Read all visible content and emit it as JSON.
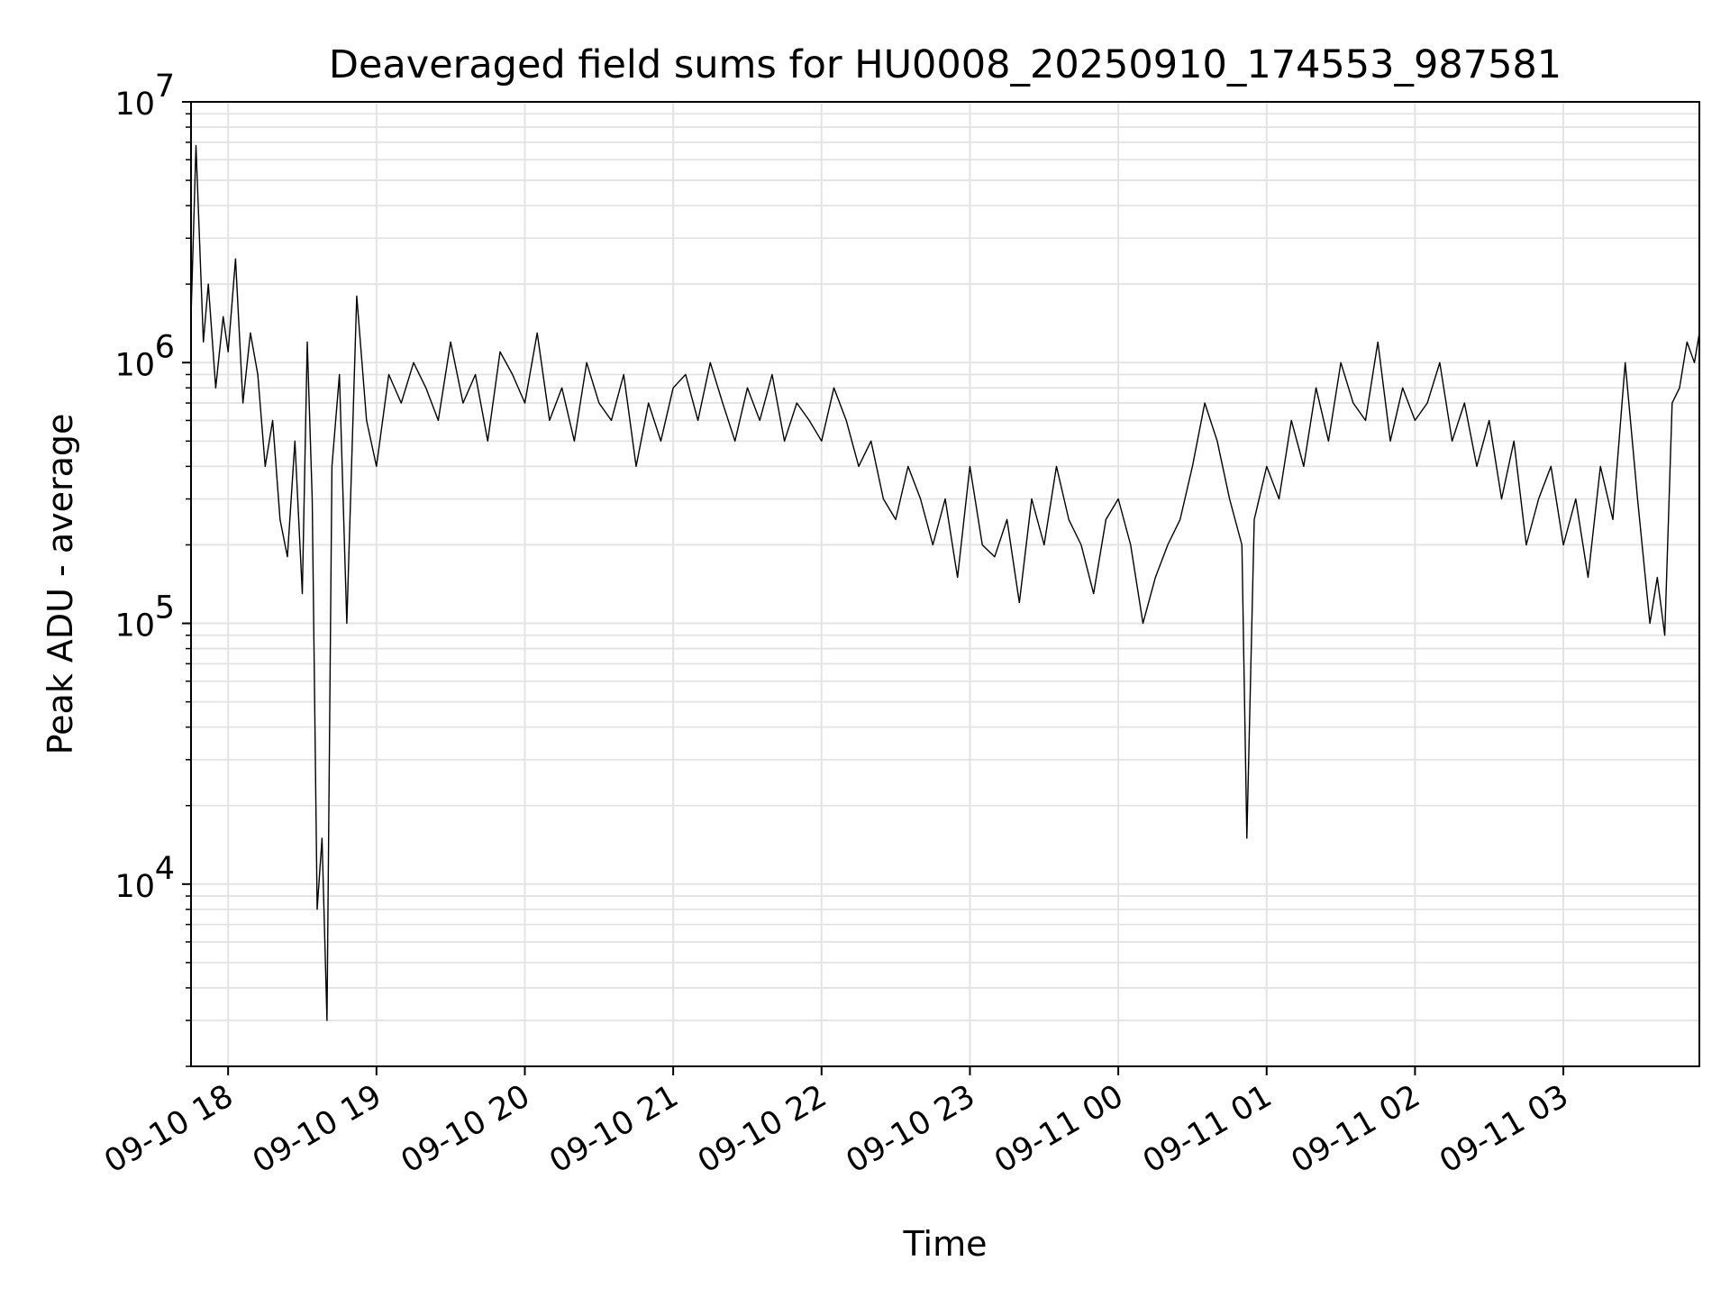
{
  "chart_data": {
    "type": "line",
    "title": "Deaveraged field sums for HU0008_20250910_174553_987581",
    "xlabel": "Time",
    "ylabel": "Peak ADU - average",
    "yscale": "log",
    "ylim": [
      2000,
      10000000
    ],
    "xlim": [
      "2025-09-10 17:45",
      "2025-09-11 03:55"
    ],
    "x_tick_labels": [
      "09-10 18",
      "09-10 19",
      "09-10 20",
      "09-10 21",
      "09-10 22",
      "09-10 23",
      "09-11 00",
      "09-11 01",
      "09-11 02",
      "09-11 03"
    ],
    "y_ticks": [
      {
        "base": "10",
        "exp": "4"
      },
      {
        "base": "10",
        "exp": "5"
      },
      {
        "base": "10",
        "exp": "6"
      },
      {
        "base": "10",
        "exp": "7"
      }
    ],
    "grid": true,
    "line_color": "#000000",
    "grid_color": "#e3e3e3",
    "series": [
      {
        "note_x": "times as hh:mm from 2025-09-10, continuing past midnight into 2025-09-11",
        "x": [
          "17:45",
          "17:47",
          "17:50",
          "17:52",
          "17:55",
          "17:58",
          "18:00",
          "18:03",
          "18:06",
          "18:09",
          "18:12",
          "18:15",
          "18:18",
          "18:21",
          "18:24",
          "18:27",
          "18:30",
          "18:32",
          "18:34",
          "18:36",
          "18:38",
          "18:40",
          "18:42",
          "18:45",
          "18:48",
          "18:52",
          "18:56",
          "19:00",
          "19:05",
          "19:10",
          "19:15",
          "19:20",
          "19:25",
          "19:30",
          "19:35",
          "19:40",
          "19:45",
          "19:50",
          "19:55",
          "20:00",
          "20:05",
          "20:10",
          "20:15",
          "20:20",
          "20:25",
          "20:30",
          "20:35",
          "20:40",
          "20:45",
          "20:50",
          "20:55",
          "21:00",
          "21:05",
          "21:10",
          "21:15",
          "21:20",
          "21:25",
          "21:30",
          "21:35",
          "21:40",
          "21:45",
          "21:50",
          "21:55",
          "22:00",
          "22:05",
          "22:10",
          "22:15",
          "22:20",
          "22:25",
          "22:30",
          "22:35",
          "22:40",
          "22:45",
          "22:50",
          "22:55",
          "23:00",
          "23:05",
          "23:10",
          "23:15",
          "23:20",
          "23:25",
          "23:30",
          "23:35",
          "23:40",
          "23:45",
          "23:50",
          "23:55",
          "00:00",
          "00:05",
          "00:10",
          "00:15",
          "00:20",
          "00:25",
          "00:30",
          "00:35",
          "00:40",
          "00:45",
          "00:50",
          "00:52",
          "00:55",
          "01:00",
          "01:05",
          "01:10",
          "01:15",
          "01:20",
          "01:25",
          "01:30",
          "01:35",
          "01:40",
          "01:45",
          "01:50",
          "01:55",
          "02:00",
          "02:05",
          "02:10",
          "02:15",
          "02:20",
          "02:25",
          "02:30",
          "02:35",
          "02:40",
          "02:45",
          "02:50",
          "02:55",
          "03:00",
          "03:05",
          "03:10",
          "03:15",
          "03:20",
          "03:25",
          "03:30",
          "03:35",
          "03:38",
          "03:41",
          "03:44",
          "03:47",
          "03:50",
          "03:53",
          "03:55"
        ],
        "y": [
          1500000,
          6800000,
          1200000,
          2000000,
          800000,
          1500000,
          1100000,
          2500000,
          700000,
          1300000,
          900000,
          400000,
          600000,
          250000,
          180000,
          500000,
          130000,
          1200000,
          300000,
          8000,
          15000,
          3000,
          400000,
          900000,
          100000,
          1800000,
          600000,
          400000,
          900000,
          700000,
          1000000,
          800000,
          600000,
          1200000,
          700000,
          900000,
          500000,
          1100000,
          900000,
          700000,
          1300000,
          600000,
          800000,
          500000,
          1000000,
          700000,
          600000,
          900000,
          400000,
          700000,
          500000,
          800000,
          900000,
          600000,
          1000000,
          700000,
          500000,
          800000,
          600000,
          900000,
          500000,
          700000,
          600000,
          500000,
          800000,
          600000,
          400000,
          500000,
          300000,
          250000,
          400000,
          300000,
          200000,
          300000,
          150000,
          400000,
          200000,
          180000,
          250000,
          120000,
          300000,
          200000,
          400000,
          250000,
          200000,
          130000,
          250000,
          300000,
          200000,
          100000,
          150000,
          200000,
          250000,
          400000,
          700000,
          500000,
          300000,
          200000,
          15000,
          250000,
          400000,
          300000,
          600000,
          400000,
          800000,
          500000,
          1000000,
          700000,
          600000,
          1200000,
          500000,
          800000,
          600000,
          700000,
          1000000,
          500000,
          700000,
          400000,
          600000,
          300000,
          500000,
          200000,
          300000,
          400000,
          200000,
          300000,
          150000,
          400000,
          250000,
          1000000,
          300000,
          100000,
          150000,
          90000,
          700000,
          800000,
          1200000,
          1000000,
          1300000
        ]
      }
    ]
  }
}
